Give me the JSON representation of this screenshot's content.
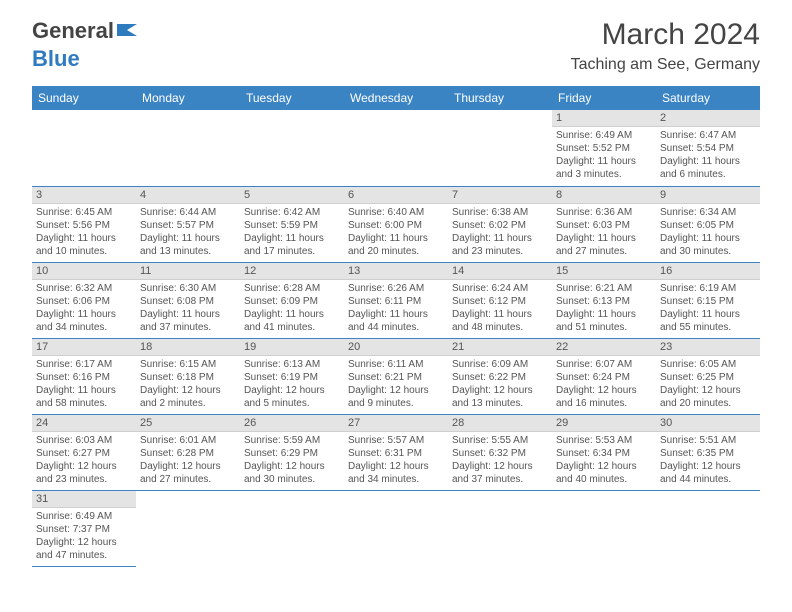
{
  "logo": {
    "text1": "General",
    "text2": "Blue"
  },
  "title": "March 2024",
  "location": "Taching am See, Germany",
  "colors": {
    "header_bg": "#3b84c4",
    "header_text": "#ffffff",
    "daynum_bg": "#e4e4e4",
    "cell_border": "#3b84c4",
    "body_text": "#555555",
    "logo_gray": "#444444",
    "logo_blue": "#2f7bbf",
    "page_bg": "#ffffff"
  },
  "fonts": {
    "title_size": 30,
    "location_size": 16,
    "weekday_size": 12,
    "daynum_size": 11,
    "cell_size": 10
  },
  "weekdays": [
    "Sunday",
    "Monday",
    "Tuesday",
    "Wednesday",
    "Thursday",
    "Friday",
    "Saturday"
  ],
  "weeks": [
    [
      null,
      null,
      null,
      null,
      null,
      {
        "n": "1",
        "sr": "Sunrise: 6:49 AM",
        "ss": "Sunset: 5:52 PM",
        "dl1": "Daylight: 11 hours",
        "dl2": "and 3 minutes."
      },
      {
        "n": "2",
        "sr": "Sunrise: 6:47 AM",
        "ss": "Sunset: 5:54 PM",
        "dl1": "Daylight: 11 hours",
        "dl2": "and 6 minutes."
      }
    ],
    [
      {
        "n": "3",
        "sr": "Sunrise: 6:45 AM",
        "ss": "Sunset: 5:56 PM",
        "dl1": "Daylight: 11 hours",
        "dl2": "and 10 minutes."
      },
      {
        "n": "4",
        "sr": "Sunrise: 6:44 AM",
        "ss": "Sunset: 5:57 PM",
        "dl1": "Daylight: 11 hours",
        "dl2": "and 13 minutes."
      },
      {
        "n": "5",
        "sr": "Sunrise: 6:42 AM",
        "ss": "Sunset: 5:59 PM",
        "dl1": "Daylight: 11 hours",
        "dl2": "and 17 minutes."
      },
      {
        "n": "6",
        "sr": "Sunrise: 6:40 AM",
        "ss": "Sunset: 6:00 PM",
        "dl1": "Daylight: 11 hours",
        "dl2": "and 20 minutes."
      },
      {
        "n": "7",
        "sr": "Sunrise: 6:38 AM",
        "ss": "Sunset: 6:02 PM",
        "dl1": "Daylight: 11 hours",
        "dl2": "and 23 minutes."
      },
      {
        "n": "8",
        "sr": "Sunrise: 6:36 AM",
        "ss": "Sunset: 6:03 PM",
        "dl1": "Daylight: 11 hours",
        "dl2": "and 27 minutes."
      },
      {
        "n": "9",
        "sr": "Sunrise: 6:34 AM",
        "ss": "Sunset: 6:05 PM",
        "dl1": "Daylight: 11 hours",
        "dl2": "and 30 minutes."
      }
    ],
    [
      {
        "n": "10",
        "sr": "Sunrise: 6:32 AM",
        "ss": "Sunset: 6:06 PM",
        "dl1": "Daylight: 11 hours",
        "dl2": "and 34 minutes."
      },
      {
        "n": "11",
        "sr": "Sunrise: 6:30 AM",
        "ss": "Sunset: 6:08 PM",
        "dl1": "Daylight: 11 hours",
        "dl2": "and 37 minutes."
      },
      {
        "n": "12",
        "sr": "Sunrise: 6:28 AM",
        "ss": "Sunset: 6:09 PM",
        "dl1": "Daylight: 11 hours",
        "dl2": "and 41 minutes."
      },
      {
        "n": "13",
        "sr": "Sunrise: 6:26 AM",
        "ss": "Sunset: 6:11 PM",
        "dl1": "Daylight: 11 hours",
        "dl2": "and 44 minutes."
      },
      {
        "n": "14",
        "sr": "Sunrise: 6:24 AM",
        "ss": "Sunset: 6:12 PM",
        "dl1": "Daylight: 11 hours",
        "dl2": "and 48 minutes."
      },
      {
        "n": "15",
        "sr": "Sunrise: 6:21 AM",
        "ss": "Sunset: 6:13 PM",
        "dl1": "Daylight: 11 hours",
        "dl2": "and 51 minutes."
      },
      {
        "n": "16",
        "sr": "Sunrise: 6:19 AM",
        "ss": "Sunset: 6:15 PM",
        "dl1": "Daylight: 11 hours",
        "dl2": "and 55 minutes."
      }
    ],
    [
      {
        "n": "17",
        "sr": "Sunrise: 6:17 AM",
        "ss": "Sunset: 6:16 PM",
        "dl1": "Daylight: 11 hours",
        "dl2": "and 58 minutes."
      },
      {
        "n": "18",
        "sr": "Sunrise: 6:15 AM",
        "ss": "Sunset: 6:18 PM",
        "dl1": "Daylight: 12 hours",
        "dl2": "and 2 minutes."
      },
      {
        "n": "19",
        "sr": "Sunrise: 6:13 AM",
        "ss": "Sunset: 6:19 PM",
        "dl1": "Daylight: 12 hours",
        "dl2": "and 5 minutes."
      },
      {
        "n": "20",
        "sr": "Sunrise: 6:11 AM",
        "ss": "Sunset: 6:21 PM",
        "dl1": "Daylight: 12 hours",
        "dl2": "and 9 minutes."
      },
      {
        "n": "21",
        "sr": "Sunrise: 6:09 AM",
        "ss": "Sunset: 6:22 PM",
        "dl1": "Daylight: 12 hours",
        "dl2": "and 13 minutes."
      },
      {
        "n": "22",
        "sr": "Sunrise: 6:07 AM",
        "ss": "Sunset: 6:24 PM",
        "dl1": "Daylight: 12 hours",
        "dl2": "and 16 minutes."
      },
      {
        "n": "23",
        "sr": "Sunrise: 6:05 AM",
        "ss": "Sunset: 6:25 PM",
        "dl1": "Daylight: 12 hours",
        "dl2": "and 20 minutes."
      }
    ],
    [
      {
        "n": "24",
        "sr": "Sunrise: 6:03 AM",
        "ss": "Sunset: 6:27 PM",
        "dl1": "Daylight: 12 hours",
        "dl2": "and 23 minutes."
      },
      {
        "n": "25",
        "sr": "Sunrise: 6:01 AM",
        "ss": "Sunset: 6:28 PM",
        "dl1": "Daylight: 12 hours",
        "dl2": "and 27 minutes."
      },
      {
        "n": "26",
        "sr": "Sunrise: 5:59 AM",
        "ss": "Sunset: 6:29 PM",
        "dl1": "Daylight: 12 hours",
        "dl2": "and 30 minutes."
      },
      {
        "n": "27",
        "sr": "Sunrise: 5:57 AM",
        "ss": "Sunset: 6:31 PM",
        "dl1": "Daylight: 12 hours",
        "dl2": "and 34 minutes."
      },
      {
        "n": "28",
        "sr": "Sunrise: 5:55 AM",
        "ss": "Sunset: 6:32 PM",
        "dl1": "Daylight: 12 hours",
        "dl2": "and 37 minutes."
      },
      {
        "n": "29",
        "sr": "Sunrise: 5:53 AM",
        "ss": "Sunset: 6:34 PM",
        "dl1": "Daylight: 12 hours",
        "dl2": "and 40 minutes."
      },
      {
        "n": "30",
        "sr": "Sunrise: 5:51 AM",
        "ss": "Sunset: 6:35 PM",
        "dl1": "Daylight: 12 hours",
        "dl2": "and 44 minutes."
      }
    ],
    [
      {
        "n": "31",
        "sr": "Sunrise: 6:49 AM",
        "ss": "Sunset: 7:37 PM",
        "dl1": "Daylight: 12 hours",
        "dl2": "and 47 minutes."
      },
      null,
      null,
      null,
      null,
      null,
      null
    ]
  ]
}
